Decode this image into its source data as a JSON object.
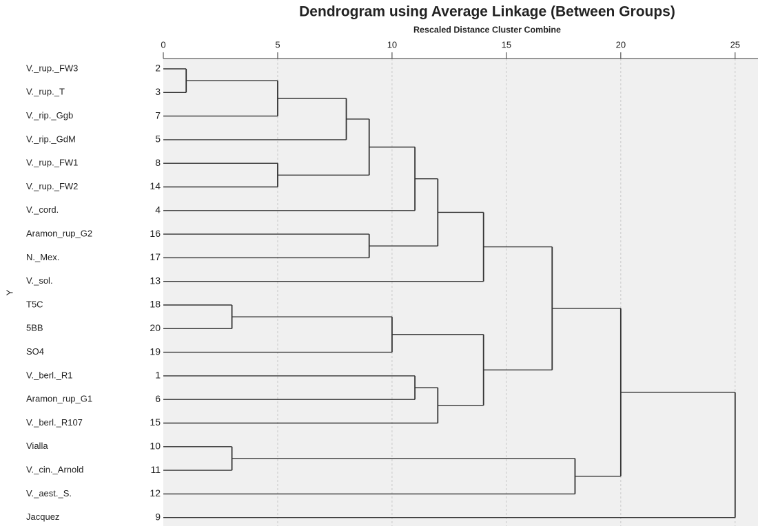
{
  "chart_data": {
    "type": "dendrogram",
    "title": "Dendrogram using Average Linkage (Between Groups)",
    "subtitle": "Rescaled Distance Cluster Combine",
    "y_label": "Y",
    "xlim": [
      0,
      26
    ],
    "xticks": [
      0,
      5,
      10,
      15,
      20,
      25
    ],
    "grid": true,
    "leaves": [
      {
        "label": "V._rup._FW3",
        "id": 2
      },
      {
        "label": "V._rup._T",
        "id": 3
      },
      {
        "label": "V._rip._Ggb",
        "id": 7
      },
      {
        "label": "V._rip._GdM",
        "id": 5
      },
      {
        "label": "V._rup._FW1",
        "id": 8
      },
      {
        "label": "V._rup._FW2",
        "id": 14
      },
      {
        "label": "V._cord.",
        "id": 4
      },
      {
        "label": "Aramon_rup_G2",
        "id": 16
      },
      {
        "label": "N._Mex.",
        "id": 17
      },
      {
        "label": "V._sol.",
        "id": 13
      },
      {
        "label": "T5C",
        "id": 18
      },
      {
        "label": "5BB",
        "id": 20
      },
      {
        "label": "SO4",
        "id": 19
      },
      {
        "label": "V._berl._R1",
        "id": 1
      },
      {
        "label": "Aramon_rup_G1",
        "id": 6
      },
      {
        "label": "V._berl._R107",
        "id": 15
      },
      {
        "label": "Vialla",
        "id": 10
      },
      {
        "label": "V._cin._Arnold",
        "id": 11
      },
      {
        "label": "V._aest._S.",
        "id": 12
      },
      {
        "label": "Jacquez",
        "id": 9
      }
    ],
    "merges": [
      {
        "join": [
          0,
          1
        ],
        "distance": 1
      },
      {
        "join": [
          20,
          2
        ],
        "distance": 5
      },
      {
        "join": [
          4,
          5
        ],
        "distance": 5
      },
      {
        "join": [
          21,
          3
        ],
        "distance": 8
      },
      {
        "join": [
          23,
          22
        ],
        "distance": 9
      },
      {
        "join": [
          24,
          6
        ],
        "distance": 11
      },
      {
        "join": [
          7,
          8
        ],
        "distance": 9
      },
      {
        "join": [
          25,
          26
        ],
        "distance": 12
      },
      {
        "join": [
          27,
          9
        ],
        "distance": 14
      },
      {
        "join": [
          10,
          11
        ],
        "distance": 3
      },
      {
        "join": [
          29,
          12
        ],
        "distance": 10
      },
      {
        "join": [
          13,
          14
        ],
        "distance": 11
      },
      {
        "join": [
          31,
          15
        ],
        "distance": 12
      },
      {
        "join": [
          30,
          32
        ],
        "distance": 14
      },
      {
        "join": [
          28,
          33
        ],
        "distance": 17
      },
      {
        "join": [
          16,
          17
        ],
        "distance": 3
      },
      {
        "join": [
          35,
          18
        ],
        "distance": 18
      },
      {
        "join": [
          34,
          36
        ],
        "distance": 20
      },
      {
        "join": [
          37,
          19
        ],
        "distance": 25
      }
    ]
  }
}
